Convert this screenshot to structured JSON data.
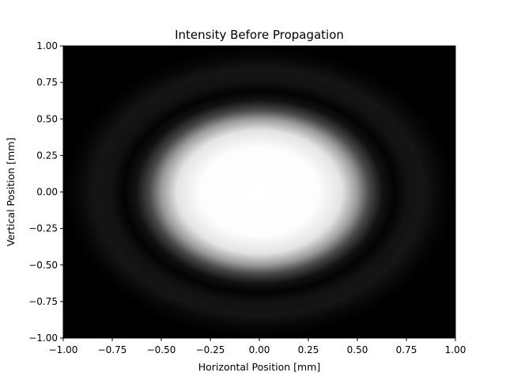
{
  "chart_data": {
    "type": "heatmap",
    "title": "Intensity Before Propagation",
    "xlabel": "Horizontal Position [mm]",
    "ylabel": "Vertical Position [mm]",
    "xlim": [
      -1.0,
      1.0
    ],
    "ylim": [
      -1.0,
      1.0
    ],
    "x_ticks": [
      -1.0,
      -0.75,
      -0.5,
      -0.25,
      0.0,
      0.25,
      0.5,
      0.75,
      1.0
    ],
    "x_tick_labels": [
      "−1.00",
      "−0.75",
      "−0.50",
      "−0.25",
      "0.00",
      "0.25",
      "0.50",
      "0.75",
      "1.00"
    ],
    "y_ticks": [
      1.0,
      0.75,
      0.5,
      0.25,
      0.0,
      -0.25,
      -0.5,
      -0.75,
      -1.0
    ],
    "y_tick_labels": [
      "1.00",
      "0.75",
      "0.50",
      "0.25",
      "0.00",
      "−0.25",
      "−0.50",
      "−0.75",
      "−1.00"
    ],
    "colormap": "gray",
    "grid": false,
    "intensity_profile": {
      "center": [
        0.0,
        0.0
      ],
      "core_halfwidth_mm": 0.5,
      "first_dark_ring_radius_mm": 0.58,
      "bright_ring_radius_mm": 0.75,
      "bright_ring_relative_intensity": 0.07,
      "peak_intensity": 1.0
    }
  }
}
